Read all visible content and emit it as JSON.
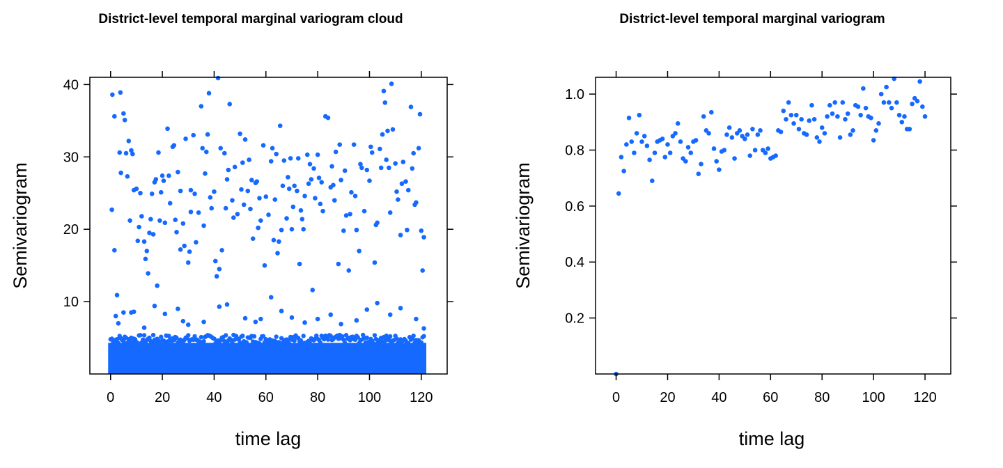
{
  "chart_data": [
    {
      "type": "scatter",
      "title": "District-level temporal marginal variogram cloud",
      "xlabel": "time lag",
      "ylabel": "Semivariogram",
      "xlim": [
        -8,
        130
      ],
      "ylim": [
        0,
        41
      ],
      "x_ticks": [
        0,
        20,
        40,
        60,
        80,
        100,
        120
      ],
      "y_ticks": [
        10,
        20,
        30,
        40
      ],
      "grid": false,
      "point_color": "#1569ff",
      "dense_band": {
        "x_range": [
          0,
          121
        ],
        "y_range": [
          0,
          4.5
        ],
        "description": "thousands of overlapping points at every lag"
      },
      "points": [
        [
          0.5,
          22.7
        ],
        [
          0.7,
          38.6
        ],
        [
          1.5,
          35.6
        ],
        [
          1.5,
          17.1
        ],
        [
          2.5,
          10.9
        ],
        [
          3.5,
          30.6
        ],
        [
          3.8,
          38.9
        ],
        [
          4,
          27.8
        ],
        [
          5,
          36
        ],
        [
          5.5,
          35.1
        ],
        [
          6,
          30.5
        ],
        [
          6.5,
          27.3
        ],
        [
          7,
          32.2
        ],
        [
          7.5,
          21.2
        ],
        [
          8,
          30.9
        ],
        [
          8.5,
          30.4
        ],
        [
          9,
          25.4
        ],
        [
          10,
          25.6
        ],
        [
          10.5,
          18.4
        ],
        [
          11,
          20.3
        ],
        [
          11.5,
          25
        ],
        [
          12,
          21.8
        ],
        [
          13,
          18.3
        ],
        [
          13.5,
          15.9
        ],
        [
          14,
          17
        ],
        [
          14.5,
          13.9
        ],
        [
          15,
          19.5
        ],
        [
          15.5,
          21.4
        ],
        [
          16,
          24.9
        ],
        [
          16.5,
          19.3
        ],
        [
          17,
          26.5
        ],
        [
          17.5,
          26.9
        ],
        [
          18,
          12.2
        ],
        [
          18.5,
          30.6
        ],
        [
          19,
          21.2
        ],
        [
          19.5,
          25.1
        ],
        [
          20,
          27.4
        ],
        [
          20.5,
          26.7
        ],
        [
          21,
          20.9
        ],
        [
          22,
          33.9
        ],
        [
          22.5,
          27.4
        ],
        [
          23,
          23.6
        ],
        [
          24,
          31.4
        ],
        [
          24.5,
          31.6
        ],
        [
          25,
          21.3
        ],
        [
          25.5,
          19.6
        ],
        [
          26,
          27.9
        ],
        [
          27,
          25.3
        ],
        [
          27,
          17.2
        ],
        [
          28,
          20.8
        ],
        [
          28.5,
          17.7
        ],
        [
          29,
          32.5
        ],
        [
          30,
          15.4
        ],
        [
          30.5,
          16.9
        ],
        [
          31,
          25.4
        ],
        [
          31,
          22.4
        ],
        [
          32,
          33
        ],
        [
          32.5,
          24.9
        ],
        [
          33,
          18.2
        ],
        [
          34,
          22.3
        ],
        [
          35,
          37
        ],
        [
          35.5,
          31.2
        ],
        [
          36,
          20.5
        ],
        [
          36.5,
          27.7
        ],
        [
          37,
          30.7
        ],
        [
          37.5,
          33.1
        ],
        [
          38,
          38.8
        ],
        [
          38.5,
          24.4
        ],
        [
          39,
          22.9
        ],
        [
          40,
          25.2
        ],
        [
          40.5,
          15.6
        ],
        [
          41,
          13.5
        ],
        [
          41.5,
          40.9
        ],
        [
          42,
          14.5
        ],
        [
          42.5,
          31.2
        ],
        [
          43,
          17.1
        ],
        [
          44,
          30.5
        ],
        [
          44.5,
          22.9
        ],
        [
          45,
          26.9
        ],
        [
          45.5,
          28.2
        ],
        [
          46,
          37.3
        ],
        [
          47,
          24
        ],
        [
          47.5,
          21.6
        ],
        [
          48,
          28.6
        ],
        [
          49,
          22.1
        ],
        [
          50,
          33.2
        ],
        [
          50.5,
          25.5
        ],
        [
          51,
          29.2
        ],
        [
          51.5,
          23.4
        ],
        [
          52,
          32.4
        ],
        [
          53,
          25.3
        ],
        [
          53.5,
          29.6
        ],
        [
          54,
          22.8
        ],
        [
          54.5,
          26.8
        ],
        [
          55,
          18.7
        ],
        [
          56,
          26.4
        ],
        [
          56.5,
          26.6
        ],
        [
          57,
          20.2
        ],
        [
          57.5,
          24.3
        ],
        [
          58,
          21.2
        ],
        [
          59,
          31.6
        ],
        [
          59.5,
          15
        ],
        [
          60,
          24.5
        ],
        [
          61,
          22
        ],
        [
          62,
          29.4
        ],
        [
          62.5,
          31.2
        ],
        [
          63,
          18.5
        ],
        [
          63.5,
          24.1
        ],
        [
          64,
          30.4
        ],
        [
          64.5,
          16.7
        ],
        [
          65,
          18.3
        ],
        [
          65.5,
          34.3
        ],
        [
          66,
          19.9
        ],
        [
          66.5,
          26
        ],
        [
          67,
          29.5
        ],
        [
          68,
          21.5
        ],
        [
          68.5,
          27.2
        ],
        [
          69,
          25.6
        ],
        [
          69.5,
          29.8
        ],
        [
          70,
          20
        ],
        [
          70.5,
          23.1
        ],
        [
          71,
          26
        ],
        [
          72,
          25.3
        ],
        [
          72.5,
          29.8
        ],
        [
          73,
          15.2
        ],
        [
          73.5,
          22.6
        ],
        [
          74,
          21.4
        ],
        [
          74.5,
          20
        ],
        [
          75,
          24.6
        ],
        [
          76,
          30.3
        ],
        [
          76.5,
          26.3
        ],
        [
          77,
          29
        ],
        [
          77.5,
          26.9
        ],
        [
          78,
          11.6
        ],
        [
          78.5,
          28.4
        ],
        [
          79,
          24.3
        ],
        [
          80,
          30.3
        ],
        [
          80.5,
          27.1
        ],
        [
          81,
          23.5
        ],
        [
          81.5,
          26.5
        ],
        [
          82,
          22.5
        ],
        [
          83,
          35.6
        ],
        [
          84,
          35.4
        ],
        [
          85,
          25.8
        ],
        [
          85.5,
          28.7
        ],
        [
          86,
          26.1
        ],
        [
          86.5,
          24
        ],
        [
          87,
          30.7
        ],
        [
          88,
          15.2
        ],
        [
          88.5,
          31.7
        ],
        [
          89,
          26.8
        ],
        [
          90,
          19.8
        ],
        [
          90.5,
          28.1
        ],
        [
          91,
          21.9
        ],
        [
          92,
          14.3
        ],
        [
          92.5,
          22.1
        ],
        [
          93,
          25.1
        ],
        [
          94,
          31.7
        ],
        [
          94.5,
          24.6
        ],
        [
          95,
          19.9
        ],
        [
          96,
          17
        ],
        [
          96.5,
          29
        ],
        [
          97,
          28.5
        ],
        [
          98,
          22.5
        ],
        [
          99,
          28.2
        ],
        [
          100,
          26.7
        ],
        [
          100.5,
          31.4
        ],
        [
          101,
          30.6
        ],
        [
          102,
          15.4
        ],
        [
          102.5,
          20.6
        ],
        [
          103,
          20.9
        ],
        [
          104,
          31.1
        ],
        [
          104.5,
          28.5
        ],
        [
          105,
          33.1
        ],
        [
          105.5,
          39.1
        ],
        [
          106,
          37.5
        ],
        [
          106.5,
          29.6
        ],
        [
          107,
          33.6
        ],
        [
          107.5,
          28.5
        ],
        [
          108,
          22.3
        ],
        [
          108.5,
          40.1
        ],
        [
          109,
          33.8
        ],
        [
          110,
          29.1
        ],
        [
          110.5,
          25.2
        ],
        [
          111,
          24.1
        ],
        [
          112,
          19.2
        ],
        [
          112.5,
          26.3
        ],
        [
          113,
          29.3
        ],
        [
          114,
          26.6
        ],
        [
          114.5,
          19.9
        ],
        [
          115,
          25.4
        ],
        [
          116,
          36.9
        ],
        [
          116.5,
          28.4
        ],
        [
          117,
          30.5
        ],
        [
          117.5,
          23.4
        ],
        [
          118,
          23.7
        ],
        [
          119,
          31.2
        ],
        [
          119.5,
          35.9
        ],
        [
          120,
          19.8
        ],
        [
          120.5,
          14.3
        ],
        [
          121,
          18.9
        ],
        [
          2,
          8
        ],
        [
          3,
          7
        ],
        [
          5,
          8.5
        ],
        [
          8,
          8.5
        ],
        [
          9,
          8.6
        ],
        [
          13,
          6.4
        ],
        [
          17,
          9.4
        ],
        [
          21,
          8.3
        ],
        [
          26,
          9
        ],
        [
          28,
          7.3
        ],
        [
          30,
          6.8
        ],
        [
          36,
          7.2
        ],
        [
          42,
          9.3
        ],
        [
          45,
          9.6
        ],
        [
          52,
          7.7
        ],
        [
          56,
          7.2
        ],
        [
          58,
          7.6
        ],
        [
          62,
          10.6
        ],
        [
          66,
          8.7
        ],
        [
          70,
          7.8
        ],
        [
          75,
          7.1
        ],
        [
          80,
          7.6
        ],
        [
          85,
          8.2
        ],
        [
          89,
          6.9
        ],
        [
          95,
          7.4
        ],
        [
          99,
          8.9
        ],
        [
          103,
          9.8
        ],
        [
          108,
          8.2
        ],
        [
          112,
          9.1
        ],
        [
          118,
          7.6
        ],
        [
          121,
          6.3
        ]
      ]
    },
    {
      "type": "scatter",
      "title": "District-level temporal marginal variogram",
      "xlabel": "time lag",
      "ylabel": "Semivariogram",
      "xlim": [
        -8,
        130
      ],
      "ylim": [
        0,
        1.06
      ],
      "x_ticks": [
        0,
        20,
        40,
        60,
        80,
        100,
        120
      ],
      "y_ticks": [
        0.2,
        0.4,
        0.6,
        0.8,
        1.0
      ],
      "y_tick_labels": [
        "0.2",
        "0.4",
        "0.6",
        "0.8",
        "1.0"
      ],
      "grid": false,
      "point_color": "#1569ff",
      "points": [
        [
          0,
          0
        ],
        [
          1,
          0.645
        ],
        [
          2,
          0.775
        ],
        [
          3,
          0.725
        ],
        [
          4,
          0.82
        ],
        [
          5,
          0.915
        ],
        [
          6,
          0.83
        ],
        [
          7,
          0.79
        ],
        [
          8,
          0.86
        ],
        [
          9,
          0.925
        ],
        [
          10,
          0.83
        ],
        [
          11,
          0.85
        ],
        [
          12,
          0.815
        ],
        [
          13,
          0.765
        ],
        [
          14,
          0.69
        ],
        [
          15,
          0.79
        ],
        [
          16,
          0.83
        ],
        [
          17,
          0.835
        ],
        [
          18,
          0.84
        ],
        [
          19,
          0.775
        ],
        [
          20,
          0.82
        ],
        [
          21,
          0.79
        ],
        [
          22,
          0.85
        ],
        [
          23,
          0.86
        ],
        [
          24,
          0.895
        ],
        [
          25,
          0.83
        ],
        [
          26,
          0.77
        ],
        [
          27,
          0.76
        ],
        [
          28,
          0.81
        ],
        [
          29,
          0.79
        ],
        [
          30,
          0.83
        ],
        [
          31,
          0.835
        ],
        [
          32,
          0.715
        ],
        [
          33,
          0.75
        ],
        [
          34,
          0.92
        ],
        [
          35,
          0.87
        ],
        [
          36,
          0.86
        ],
        [
          37,
          0.935
        ],
        [
          38,
          0.805
        ],
        [
          39,
          0.76
        ],
        [
          40,
          0.73
        ],
        [
          41,
          0.795
        ],
        [
          42,
          0.8
        ],
        [
          43,
          0.855
        ],
        [
          44,
          0.88
        ],
        [
          45,
          0.845
        ],
        [
          46,
          0.77
        ],
        [
          47,
          0.86
        ],
        [
          48,
          0.87
        ],
        [
          49,
          0.85
        ],
        [
          50,
          0.84
        ],
        [
          51,
          0.855
        ],
        [
          52,
          0.78
        ],
        [
          53,
          0.875
        ],
        [
          54,
          0.8
        ],
        [
          55,
          0.855
        ],
        [
          56,
          0.87
        ],
        [
          57,
          0.8
        ],
        [
          58,
          0.79
        ],
        [
          59,
          0.805
        ],
        [
          60,
          0.77
        ],
        [
          61,
          0.775
        ],
        [
          62,
          0.78
        ],
        [
          63,
          0.87
        ],
        [
          64,
          0.865
        ],
        [
          65,
          0.94
        ],
        [
          66,
          0.91
        ],
        [
          67,
          0.97
        ],
        [
          68,
          0.925
        ],
        [
          69,
          0.895
        ],
        [
          70,
          0.925
        ],
        [
          71,
          0.875
        ],
        [
          72,
          0.91
        ],
        [
          73,
          0.86
        ],
        [
          74,
          0.855
        ],
        [
          75,
          0.905
        ],
        [
          76,
          0.96
        ],
        [
          77,
          0.91
        ],
        [
          78,
          0.845
        ],
        [
          79,
          0.83
        ],
        [
          80,
          0.88
        ],
        [
          81,
          0.86
        ],
        [
          82,
          0.92
        ],
        [
          83,
          0.96
        ],
        [
          84,
          0.93
        ],
        [
          85,
          0.97
        ],
        [
          86,
          0.92
        ],
        [
          87,
          0.845
        ],
        [
          88,
          0.97
        ],
        [
          89,
          0.91
        ],
        [
          90,
          0.93
        ],
        [
          91,
          0.855
        ],
        [
          92,
          0.87
        ],
        [
          93,
          0.96
        ],
        [
          94,
          0.955
        ],
        [
          95,
          0.925
        ],
        [
          96,
          1.02
        ],
        [
          97,
          0.95
        ],
        [
          98,
          0.92
        ],
        [
          99,
          0.915
        ],
        [
          100,
          0.835
        ],
        [
          101,
          0.87
        ],
        [
          102,
          0.895
        ],
        [
          103,
          1.0
        ],
        [
          104,
          0.97
        ],
        [
          105,
          1.025
        ],
        [
          106,
          0.97
        ],
        [
          107,
          0.95
        ],
        [
          108,
          1.055
        ],
        [
          109,
          0.97
        ],
        [
          110,
          0.925
        ],
        [
          111,
          0.9
        ],
        [
          112,
          0.92
        ],
        [
          113,
          0.875
        ],
        [
          114,
          0.875
        ],
        [
          115,
          0.965
        ],
        [
          116,
          0.985
        ],
        [
          117,
          0.975
        ],
        [
          118,
          1.045
        ],
        [
          119,
          0.955
        ],
        [
          120,
          0.92
        ]
      ]
    }
  ]
}
